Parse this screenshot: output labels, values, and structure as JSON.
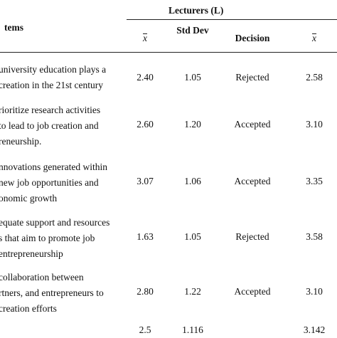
{
  "header": {
    "group_label": "Lecturers (L)",
    "items_label": "tems",
    "columns": [
      "x",
      "Std Dev",
      "Decision",
      "x"
    ]
  },
  "rows": [
    {
      "item_lines": [
        "university education plays a",
        "creation in the 21st century"
      ],
      "mean": "2.40",
      "std": "1.05",
      "decision": "Rejected",
      "mean2": "2.58"
    },
    {
      "item_lines": [
        "rioritize research activities",
        "to lead to job creation and",
        "reneurship."
      ],
      "mean": "2.60",
      "std": "1.20",
      "decision": "Accepted",
      "mean2": "3.10"
    },
    {
      "item_lines": [
        "nnovations generated within",
        "new job opportunities and",
        "onomic growth"
      ],
      "mean": "3.07",
      "std": "1.06",
      "decision": "Accepted",
      "mean2": "3.35"
    },
    {
      "item_lines": [
        "equate support and resources",
        "s that aim to promote job",
        "entrepreneurship"
      ],
      "mean": "1.63",
      "std": "1.05",
      "decision": "Rejected",
      "mean2": "3.58"
    },
    {
      "item_lines": [
        "collaboration between",
        "rtners, and entrepreneurs to",
        "creation efforts"
      ],
      "mean": "2.80",
      "std": "1.22",
      "decision": "Accepted",
      "mean2": "3.10"
    }
  ],
  "summary": {
    "mean": "2.5",
    "std": "1.116",
    "mean2": "3.142"
  }
}
